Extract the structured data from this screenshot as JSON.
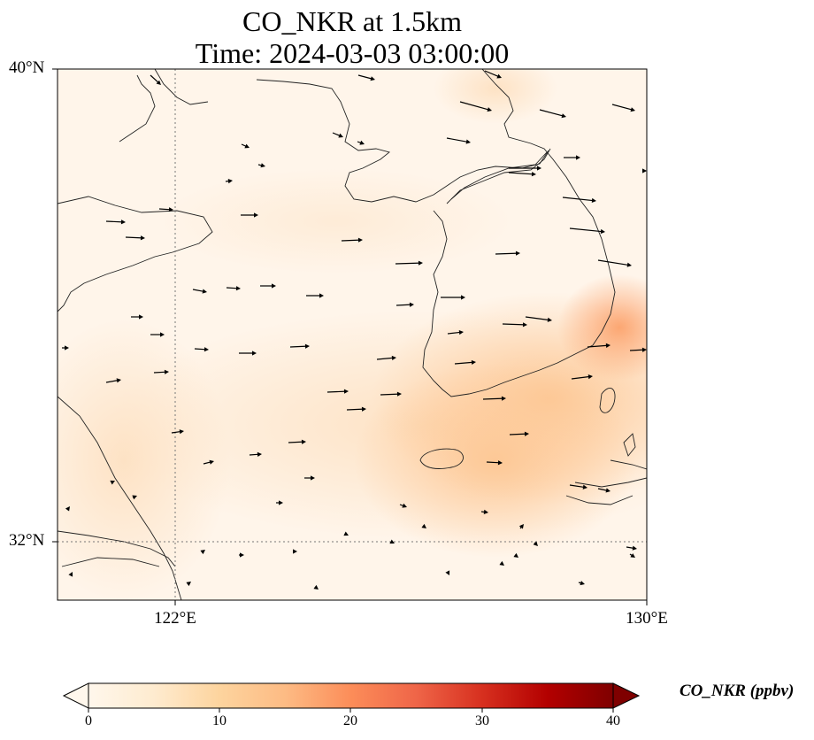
{
  "title": {
    "line1": "CO_NKR at 1.5km",
    "line2": "Time: 2024-03-03 03:00:00"
  },
  "axes": {
    "lat_labels": [
      "40°N",
      "32°N"
    ],
    "lon_labels": [
      "122°E",
      "130°E"
    ],
    "lat_range": [
      31,
      40
    ],
    "lon_range": [
      120,
      130
    ],
    "gridlines": {
      "lat": [
        32
      ],
      "lon": [
        122
      ],
      "style": "dotted"
    }
  },
  "colorbar": {
    "label": "CO_NKR (ppbv)",
    "ticks": [
      "0",
      "10",
      "20",
      "30",
      "40"
    ],
    "min": 0,
    "max": 40,
    "colormap": "OrRd",
    "extend": "both"
  },
  "colors": {
    "low": "#fff7ec",
    "mid": "#fdbb84",
    "high": "#7f0000"
  },
  "field": {
    "description_values_ppbv": {
      "background": 2,
      "south_coast_korea": 10,
      "east_coast_peak": 14,
      "yellow_sea_band": 6
    }
  },
  "wind": {
    "direction": "westerly to east-north-east"
  }
}
